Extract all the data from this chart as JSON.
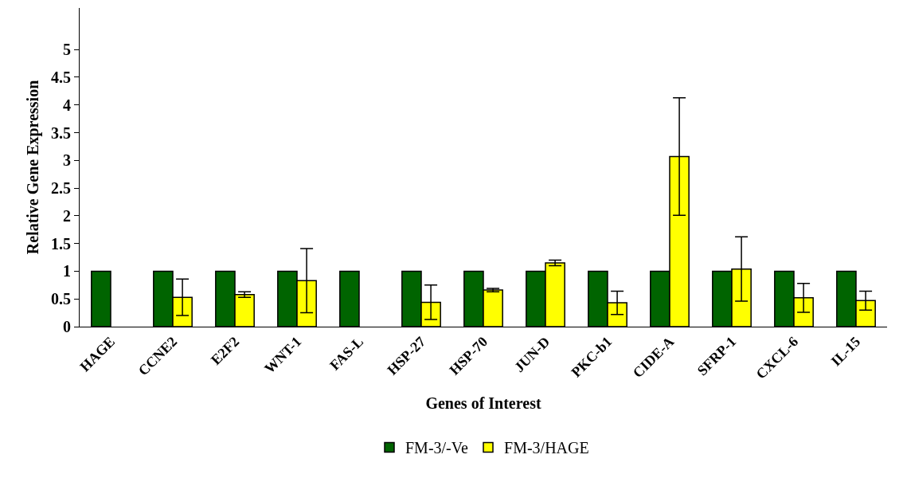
{
  "chart_data": {
    "type": "bar",
    "xlabel": "Genes of Interest",
    "ylabel": "Relative Gene Expression",
    "categories": [
      "HAGE",
      "CCNE2",
      "E2F2",
      "WNT-1",
      "FAS-L",
      "HSP-27",
      "HSP-70",
      "JUN-D",
      "PKC-b1",
      "CIDE-A",
      "SFRP-1",
      "CXCL-6",
      "IL-15"
    ],
    "series": [
      {
        "name": "FM-3/-Ve",
        "color": "#006400",
        "values": [
          1,
          1,
          1,
          1,
          1,
          1,
          1,
          1,
          1,
          1,
          1,
          1,
          1
        ]
      },
      {
        "name": "FM-3/HAGE",
        "color": "#ffff00",
        "values": [
          null,
          0.53,
          0.58,
          0.83,
          null,
          0.44,
          0.66,
          1.15,
          0.43,
          3.07,
          1.04,
          0.52,
          0.47
        ],
        "errors": [
          null,
          0.33,
          0.05,
          0.58,
          null,
          0.31,
          0.03,
          0.05,
          0.21,
          1.06,
          0.58,
          0.26,
          0.17
        ]
      }
    ],
    "ylim": [
      0,
      5.75
    ],
    "yticks": [
      0,
      0.5,
      1,
      1.5,
      2,
      2.5,
      3,
      3.5,
      4,
      4.5,
      5
    ],
    "grid": false,
    "legend": "bottom"
  }
}
